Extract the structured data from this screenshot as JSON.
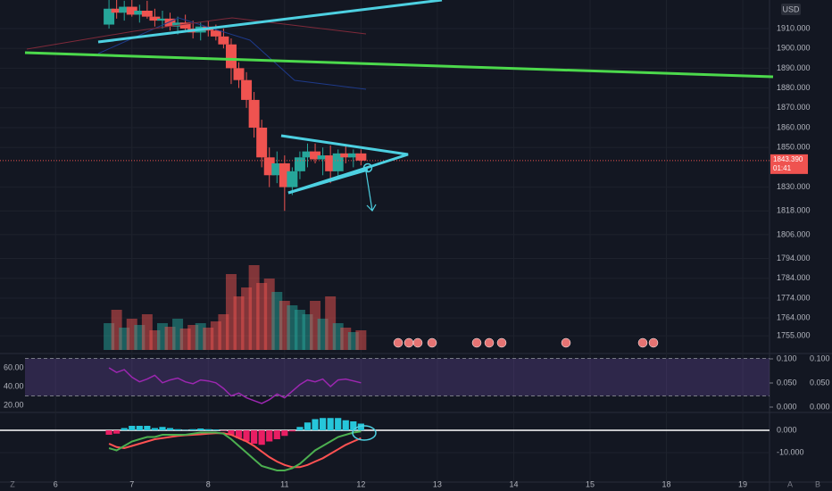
{
  "chart_data": {
    "type": "candlestick",
    "currency": "USD",
    "up_color": "#26a69a",
    "down_color": "#ef5350",
    "x": [
      0.7,
      0.8,
      0.9,
      1.0,
      1.1,
      1.2,
      1.3,
      1.4,
      1.5,
      1.6,
      1.7,
      1.8,
      1.9,
      2.0,
      2.1,
      2.2,
      2.3,
      2.4,
      2.5,
      2.6,
      2.7,
      2.8,
      2.9,
      3.0,
      3.1,
      3.2,
      3.3,
      3.4,
      3.5,
      3.6,
      3.7,
      3.8,
      3.9,
      4.0
    ],
    "open": [
      1912,
      1920,
      1918,
      1921,
      1917,
      1919,
      1916,
      1914,
      1915,
      1911,
      1913,
      1910,
      1908,
      1911,
      1909,
      1906,
      1902,
      1890,
      1884,
      1874,
      1860,
      1845,
      1836,
      1842,
      1830,
      1838,
      1845,
      1848,
      1844,
      1846,
      1838,
      1847,
      1845,
      1847
    ],
    "high": [
      1925,
      1926,
      1924,
      1925,
      1922,
      1924,
      1920,
      1919,
      1918,
      1916,
      1917,
      1914,
      1913,
      1914,
      1912,
      1910,
      1905,
      1893,
      1888,
      1878,
      1864,
      1850,
      1848,
      1846,
      1840,
      1848,
      1852,
      1852,
      1850,
      1851,
      1849,
      1851,
      1849,
      1849
    ],
    "low": [
      1910,
      1915,
      1914,
      1916,
      1913,
      1915,
      1911,
      1910,
      1909,
      1907,
      1908,
      1905,
      1904,
      1906,
      1904,
      1900,
      1882,
      1880,
      1870,
      1855,
      1840,
      1830,
      1832,
      1818,
      1826,
      1834,
      1840,
      1842,
      1836,
      1832,
      1835,
      1842,
      1840,
      1841
    ],
    "close": [
      1920,
      1918,
      1921,
      1917,
      1919,
      1916,
      1914,
      1915,
      1911,
      1913,
      1910,
      1908,
      1911,
      1909,
      1906,
      1902,
      1890,
      1884,
      1874,
      1860,
      1845,
      1836,
      1842,
      1830,
      1838,
      1845,
      1848,
      1844,
      1846,
      1838,
      1847,
      1845,
      1847,
      1843.39
    ],
    "last_price_label": "1843.390",
    "countdown": "01:41",
    "xlim": [
      -0.4,
      9.35
    ],
    "xticks": [
      {
        "value": 0,
        "label": "6"
      },
      {
        "value": 1,
        "label": "7"
      },
      {
        "value": 2,
        "label": "8"
      },
      {
        "value": 3,
        "label": "11"
      },
      {
        "value": 4,
        "label": "12"
      },
      {
        "value": 5,
        "label": "13"
      },
      {
        "value": 6,
        "label": "14"
      },
      {
        "value": 7,
        "label": "15"
      },
      {
        "value": 8,
        "label": "18"
      },
      {
        "value": 9,
        "label": "19"
      }
    ],
    "ylim": [
      1746.5,
      1924.4
    ],
    "yticks": [
      {
        "value": 1910,
        "label": "1910.000"
      },
      {
        "value": 1900,
        "label": "1900.000"
      },
      {
        "value": 1890,
        "label": "1890.000"
      },
      {
        "value": 1880,
        "label": "1880.000"
      },
      {
        "value": 1870,
        "label": "1870.000"
      },
      {
        "value": 1860,
        "label": "1860.000"
      },
      {
        "value": 1850,
        "label": "1850.000"
      },
      {
        "value": 1830,
        "label": "1830.000"
      },
      {
        "value": 1818,
        "label": "1818.000"
      },
      {
        "value": 1806,
        "label": "1806.000"
      },
      {
        "value": 1794,
        "label": "1794.000"
      },
      {
        "value": 1784,
        "label": "1784.000"
      },
      {
        "value": 1774,
        "label": "1774.000"
      },
      {
        "value": 1764,
        "label": "1764.000"
      },
      {
        "value": 1755,
        "label": "1755.000"
      }
    ],
    "volume": {
      "values": [
        30,
        45,
        25,
        35,
        28,
        40,
        22,
        30,
        26,
        35,
        24,
        28,
        30,
        25,
        32,
        40,
        85,
        60,
        70,
        95,
        75,
        80,
        65,
        55,
        50,
        45,
        40,
        55,
        35,
        60,
        30,
        25,
        20,
        22
      ],
      "ylim": [
        0,
        100
      ]
    },
    "rsi": {
      "color": "#9c27b0",
      "values": [
        60,
        55,
        58,
        50,
        45,
        48,
        52,
        44,
        47,
        49,
        45,
        43,
        47,
        46,
        44,
        38,
        30,
        33,
        28,
        25,
        22,
        26,
        32,
        28,
        35,
        42,
        47,
        45,
        48,
        40,
        47,
        48,
        46,
        44
      ],
      "band": [
        30,
        70
      ],
      "ylim": [
        14.3,
        73.3
      ],
      "yticks": [
        {
          "value": 60,
          "label": "60.00"
        },
        {
          "value": 40,
          "label": "40.00"
        },
        {
          "value": 20,
          "label": "20.00"
        }
      ],
      "y2lim": [
        -0.0074,
        0.1074
      ],
      "y2ticks": [
        {
          "value": 0.1,
          "label": "0.100"
        },
        {
          "value": 0.05,
          "label": "0.050"
        },
        {
          "value": 0,
          "label": "0.000"
        }
      ]
    },
    "macd": {
      "macd_color": "#4caf50",
      "signal_color": "#ff5252",
      "macd": [
        -8,
        -9,
        -7,
        -5,
        -4,
        -3,
        -3,
        -2,
        -2,
        -2,
        -2,
        -1.5,
        -1,
        -1,
        -1,
        -1.5,
        -4,
        -7,
        -10,
        -13,
        -16,
        -17,
        -18,
        -18,
        -17,
        -15,
        -12,
        -9,
        -7,
        -5,
        -3,
        -2,
        -1,
        -0.5
      ],
      "signal": [
        -6,
        -7.5,
        -8,
        -7,
        -6,
        -5,
        -4,
        -3.5,
        -3,
        -2.5,
        -2.2,
        -2,
        -1.8,
        -1.5,
        -1.3,
        -1.3,
        -2,
        -3.5,
        -5,
        -7,
        -9.5,
        -12,
        -14,
        -15.5,
        -16.5,
        -16.5,
        -15.5,
        -14,
        -12.5,
        -10.5,
        -8.5,
        -6.5,
        -5,
        -3.5
      ],
      "hist": [
        -2,
        -1.5,
        1,
        2,
        2,
        2,
        1,
        1.5,
        1,
        0.5,
        0.2,
        0.5,
        0.8,
        0.5,
        0.3,
        -0.2,
        -2,
        -3.5,
        -5,
        -6,
        -6.5,
        -5,
        -4,
        -2.5,
        -0.5,
        1.5,
        3.5,
        5,
        5.5,
        5.5,
        5.5,
        4.5,
        4,
        3
      ],
      "ylim": [
        -23.2,
        6.8
      ],
      "yticks": [
        {
          "value": 0,
          "label": "0.000"
        },
        {
          "value": -10,
          "label": "-10.000"
        }
      ]
    }
  }
}
